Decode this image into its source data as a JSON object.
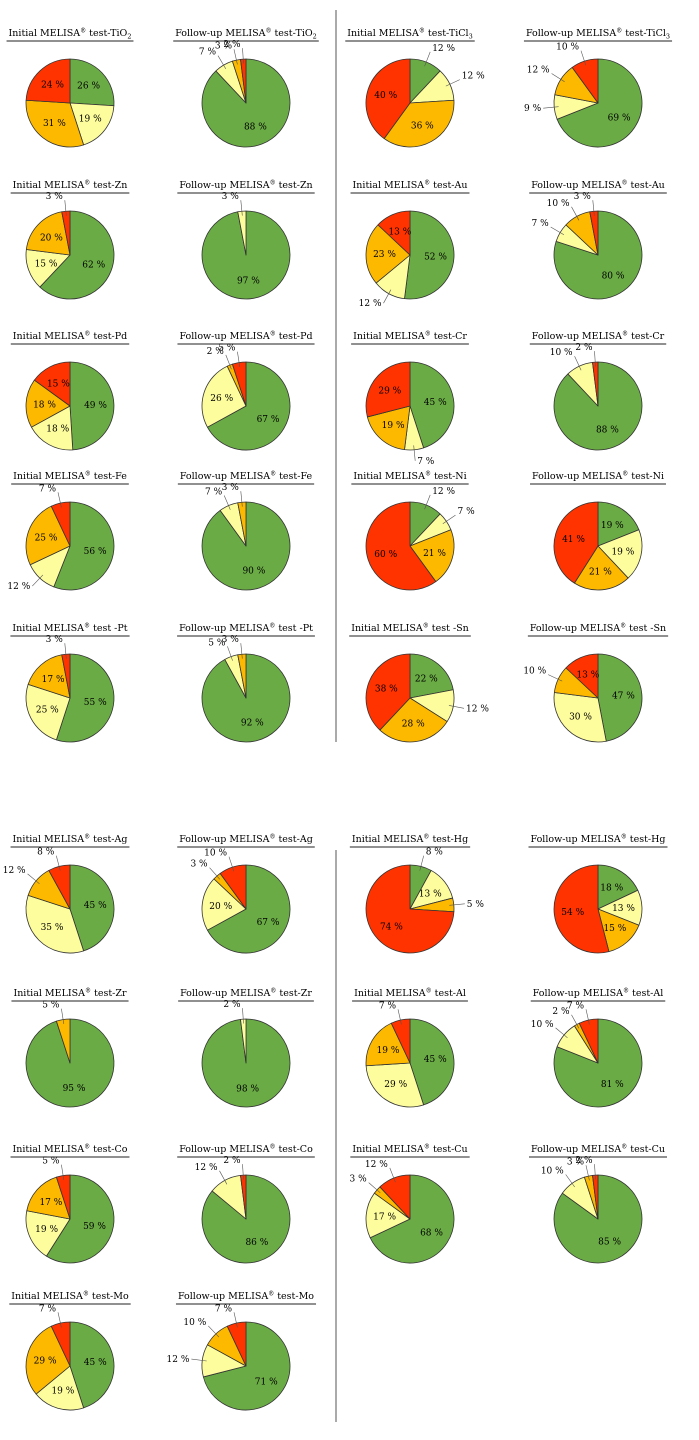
{
  "colors": {
    "negative": "#6AAB45",
    "weak": "#FDFD9D",
    "positive": "#FCB900",
    "strong": "#FF3300"
  },
  "chart_data": [
    {
      "id": "tio2-initial",
      "type": "pie",
      "title": "Initial MELISA® test-TiO",
      "title_sub": "2",
      "values": [
        26,
        19,
        31,
        24
      ],
      "labels": [
        "26 %",
        "19 %",
        "31 %",
        "24 %"
      ]
    },
    {
      "id": "tio2-followup",
      "type": "pie",
      "title": "Follow-up MELISA® test-TiO",
      "title_sub": "2",
      "values": [
        88,
        7,
        3,
        2
      ],
      "labels": [
        "88 %",
        "7 %",
        "3 %",
        "2 %"
      ]
    },
    {
      "id": "ticl3-initial",
      "type": "pie",
      "title": "Initial MELISA® test-TiCl",
      "title_sub": "3",
      "values": [
        12,
        12,
        36,
        40
      ],
      "labels": [
        "12 %",
        "12 %",
        "36 %",
        "40 %"
      ]
    },
    {
      "id": "ticl3-followup",
      "type": "pie",
      "title": "Follow-up MELISA® test-TiCl",
      "title_sub": "3",
      "values": [
        69,
        9,
        12,
        10
      ],
      "labels": [
        "69 %",
        "9 %",
        "12 %",
        "10 %"
      ]
    },
    {
      "id": "zn-initial",
      "type": "pie",
      "title": "Initial MELISA® test-Zn",
      "values": [
        62,
        15,
        20,
        3
      ],
      "labels": [
        "62 %",
        "15 %",
        "20 %",
        "3 %"
      ]
    },
    {
      "id": "zn-followup",
      "type": "pie",
      "title": "Follow-up MELISA® test-Zn",
      "values": [
        97,
        3,
        0,
        0
      ],
      "labels": [
        "97 %",
        "3 %",
        "",
        ""
      ]
    },
    {
      "id": "au-initial",
      "type": "pie",
      "title": "Initial MELISA® test-Au",
      "values": [
        52,
        12,
        23,
        13
      ],
      "labels": [
        "52 %",
        "12 %",
        "23 %",
        "13 %"
      ]
    },
    {
      "id": "au-followup",
      "type": "pie",
      "title": "Follow-up MELISA® test-Au",
      "values": [
        80,
        7,
        10,
        3
      ],
      "labels": [
        "80 %",
        "7 %",
        "10 %",
        "3 %"
      ]
    },
    {
      "id": "pd-initial",
      "type": "pie",
      "title": "Initial MELISA® test-Pd",
      "values": [
        49,
        18,
        18,
        15
      ],
      "labels": [
        "49 %",
        "18 %",
        "18 %",
        "15 %"
      ]
    },
    {
      "id": "pd-followup",
      "type": "pie",
      "title": "Follow-up MELISA® test-Pd",
      "values": [
        67,
        26,
        2,
        5
      ],
      "labels": [
        "67 %",
        "26 %",
        "2 %",
        "5 %"
      ]
    },
    {
      "id": "cr-initial",
      "type": "pie",
      "title": "Initial MELISA® test-Cr",
      "values": [
        45,
        7,
        19,
        29
      ],
      "labels": [
        "45 %",
        "7 %",
        "19 %",
        "29 %"
      ]
    },
    {
      "id": "cr-followup",
      "type": "pie",
      "title": "Follow-up MELISA® test-Cr",
      "values": [
        88,
        10,
        0,
        2
      ],
      "labels": [
        "88 %",
        "10 %",
        "",
        "2 %"
      ]
    },
    {
      "id": "fe-initial",
      "type": "pie",
      "title": "Initial MELISA® test-Fe",
      "values": [
        56,
        12,
        25,
        7
      ],
      "labels": [
        "56 %",
        "12 %",
        "25 %",
        "7 %"
      ]
    },
    {
      "id": "fe-followup",
      "type": "pie",
      "title": "Follow-up MELISA® test-Fe",
      "values": [
        90,
        7,
        3,
        0
      ],
      "labels": [
        "90 %",
        "7 %",
        "3 %",
        ""
      ]
    },
    {
      "id": "ni-initial",
      "type": "pie",
      "title": "Initial MELISA® test-Ni",
      "values": [
        12,
        7,
        21,
        60
      ],
      "labels": [
        "12 %",
        "7 %",
        "21 %",
        "60 %"
      ]
    },
    {
      "id": "ni-followup",
      "type": "pie",
      "title": "Follow-up MELISA® test-Ni",
      "values": [
        19,
        19,
        21,
        41
      ],
      "labels": [
        "19 %",
        "19 %",
        "21 %",
        "41 %"
      ]
    },
    {
      "id": "pt-initial",
      "type": "pie",
      "title": "Initial MELISA® test -Pt",
      "values": [
        55,
        25,
        17,
        3
      ],
      "labels": [
        "55 %",
        "25 %",
        "17 %",
        "3 %"
      ]
    },
    {
      "id": "pt-followup",
      "type": "pie",
      "title": "Follow-up MELISA® test -Pt",
      "values": [
        92,
        5,
        3,
        0
      ],
      "labels": [
        "92 %",
        "5 %",
        "3 %",
        ""
      ]
    },
    {
      "id": "sn-initial",
      "type": "pie",
      "title": "Initial MELISA® test -Sn",
      "values": [
        22,
        12,
        28,
        38
      ],
      "labels": [
        "22 %",
        "12 %",
        "28 %",
        "38 %"
      ]
    },
    {
      "id": "sn-followup",
      "type": "pie",
      "title": "Follow-up MELISA® test -Sn",
      "values": [
        47,
        30,
        10,
        13
      ],
      "labels": [
        "47 %",
        "30 %",
        "10 %",
        "13 %"
      ]
    },
    {
      "id": "ag-initial",
      "type": "pie",
      "title": "Initial MELISA® test-Ag",
      "values": [
        45,
        35,
        12,
        8
      ],
      "labels": [
        "45 %",
        "35 %",
        "12 %",
        "8 %"
      ]
    },
    {
      "id": "ag-followup",
      "type": "pie",
      "title": "Follow-up MELISA® test-Ag",
      "values": [
        67,
        20,
        3,
        10
      ],
      "labels": [
        "67 %",
        "20 %",
        "3 %",
        "10 %"
      ]
    },
    {
      "id": "hg-initial",
      "type": "pie",
      "title": "Initial MELISA® test-Hg",
      "values": [
        8,
        13,
        5,
        74
      ],
      "labels": [
        "8 %",
        "13 %",
        "5 %",
        "74 %"
      ]
    },
    {
      "id": "hg-followup",
      "type": "pie",
      "title": "Follow-up MELISA® test-Hg",
      "values": [
        18,
        13,
        15,
        54
      ],
      "labels": [
        "18 %",
        "13 %",
        "15 %",
        "54 %"
      ]
    },
    {
      "id": "zr-initial",
      "type": "pie",
      "title": "Initial MELISA® test-Zr",
      "values": [
        95,
        0,
        5,
        0
      ],
      "labels": [
        "95 %",
        "",
        "5 %",
        ""
      ]
    },
    {
      "id": "zr-followup",
      "type": "pie",
      "title": "Follow-up MELISA® test-Zr",
      "values": [
        98,
        2,
        0,
        0
      ],
      "labels": [
        "98 %",
        "2 %",
        "",
        ""
      ]
    },
    {
      "id": "al-initial",
      "type": "pie",
      "title": "Initial MELISA® test-Al",
      "values": [
        45,
        29,
        19,
        7
      ],
      "labels": [
        "45 %",
        "29 %",
        "19 %",
        "7 %"
      ]
    },
    {
      "id": "al-followup",
      "type": "pie",
      "title": "Follow-up MELISA® test-Al",
      "values": [
        81,
        10,
        2,
        7
      ],
      "labels": [
        "81 %",
        "10 %",
        "2 %",
        "7 %"
      ]
    },
    {
      "id": "co-initial",
      "type": "pie",
      "title": "Initial MELISA® test-Co",
      "values": [
        59,
        19,
        17,
        5
      ],
      "labels": [
        "59 %",
        "19 %",
        "17 %",
        "5 %"
      ]
    },
    {
      "id": "co-followup",
      "type": "pie",
      "title": "Follow-up MELISA® test-Co",
      "values": [
        86,
        12,
        0,
        2
      ],
      "labels": [
        "86 %",
        "12 %",
        "",
        "2 %"
      ]
    },
    {
      "id": "cu-initial",
      "type": "pie",
      "title": "Initial MELISA® test-Cu",
      "values": [
        68,
        17,
        3,
        12
      ],
      "labels": [
        "68 %",
        "17 %",
        "3 %",
        "12 %"
      ]
    },
    {
      "id": "cu-followup",
      "type": "pie",
      "title": "Follow-up MELISA® test-Cu",
      "values": [
        85,
        10,
        3,
        2
      ],
      "labels": [
        "85 %",
        "10 %",
        "3 %",
        "2 %"
      ]
    },
    {
      "id": "mo-initial",
      "type": "pie",
      "title": "Initial MELISA® test-Mo",
      "values": [
        45,
        19,
        29,
        7
      ],
      "labels": [
        "45 %",
        "19 %",
        "29 %",
        "7 %"
      ]
    },
    {
      "id": "mo-followup",
      "type": "pie",
      "title": "Follow-up MELISA® test-Mo",
      "values": [
        71,
        12,
        10,
        7
      ],
      "labels": [
        "71 %",
        "12 %",
        "10 %",
        "7 %"
      ]
    }
  ]
}
